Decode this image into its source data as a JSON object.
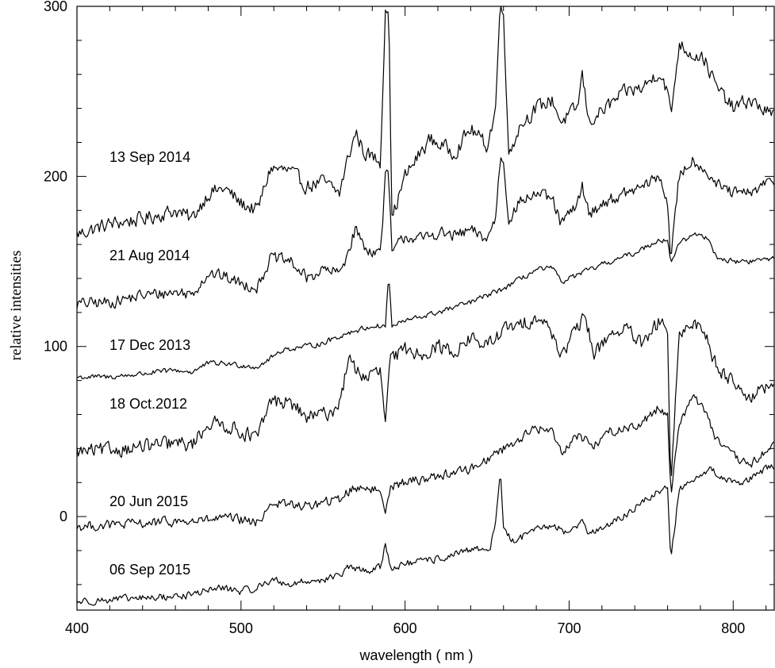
{
  "chart_data": {
    "type": "line",
    "title": "",
    "xlabel": "wavelength ( nm )",
    "ylabel": "relative intensities",
    "xlim": [
      400,
      825
    ],
    "ylim": [
      -55,
      300
    ],
    "xticks": [
      400,
      500,
      600,
      700,
      800
    ],
    "yticks": [
      0,
      100,
      200,
      300
    ],
    "grid": false,
    "line_color": "#000000",
    "series": [
      {
        "name": "13 Sep 2014",
        "points": [
          [
            400,
            166
          ],
          [
            420,
            172
          ],
          [
            440,
            175
          ],
          [
            460,
            180
          ],
          [
            470,
            175
          ],
          [
            480,
            190
          ],
          [
            490,
            193
          ],
          [
            500,
            184
          ],
          [
            510,
            180
          ],
          [
            518,
            205
          ],
          [
            530,
            203
          ],
          [
            540,
            194
          ],
          [
            550,
            197
          ],
          [
            560,
            190
          ],
          [
            565,
            210
          ],
          [
            570,
            226
          ],
          [
            575,
            214
          ],
          [
            585,
            209
          ],
          [
            588,
            300
          ],
          [
            590,
            300
          ],
          [
            592,
            175
          ],
          [
            600,
            200
          ],
          [
            615,
            222
          ],
          [
            630,
            214
          ],
          [
            640,
            228
          ],
          [
            650,
            218
          ],
          [
            655,
            238
          ],
          [
            658,
            300
          ],
          [
            660,
            300
          ],
          [
            663,
            213
          ],
          [
            670,
            230
          ],
          [
            680,
            240
          ],
          [
            690,
            245
          ],
          [
            695,
            232
          ],
          [
            705,
            240
          ],
          [
            708,
            260
          ],
          [
            712,
            232
          ],
          [
            722,
            240
          ],
          [
            735,
            250
          ],
          [
            745,
            252
          ],
          [
            755,
            262
          ],
          [
            760,
            250
          ],
          [
            762,
            235
          ],
          [
            767,
            278
          ],
          [
            775,
            272
          ],
          [
            782,
            270
          ],
          [
            790,
            252
          ],
          [
            800,
            240
          ],
          [
            810,
            245
          ],
          [
            825,
            235
          ]
        ],
        "noise": 6
      },
      {
        "name": "21 Aug 2014",
        "points": [
          [
            400,
            125
          ],
          [
            420,
            126
          ],
          [
            440,
            130
          ],
          [
            460,
            132
          ],
          [
            470,
            131
          ],
          [
            480,
            143
          ],
          [
            490,
            141
          ],
          [
            500,
            137
          ],
          [
            510,
            135
          ],
          [
            518,
            152
          ],
          [
            530,
            150
          ],
          [
            540,
            140
          ],
          [
            550,
            145
          ],
          [
            560,
            143
          ],
          [
            565,
            155
          ],
          [
            570,
            170
          ],
          [
            575,
            158
          ],
          [
            585,
            155
          ],
          [
            588,
            200
          ],
          [
            590,
            200
          ],
          [
            592,
            155
          ],
          [
            600,
            165
          ],
          [
            610,
            163
          ],
          [
            620,
            167
          ],
          [
            630,
            165
          ],
          [
            640,
            168
          ],
          [
            650,
            163
          ],
          [
            655,
            175
          ],
          [
            658,
            210
          ],
          [
            660,
            210
          ],
          [
            663,
            175
          ],
          [
            670,
            185
          ],
          [
            680,
            190
          ],
          [
            690,
            186
          ],
          [
            695,
            172
          ],
          [
            705,
            183
          ],
          [
            708,
            195
          ],
          [
            712,
            178
          ],
          [
            722,
            185
          ],
          [
            735,
            190
          ],
          [
            745,
            194
          ],
          [
            755,
            200
          ],
          [
            760,
            185
          ],
          [
            762,
            150
          ],
          [
            767,
            200
          ],
          [
            775,
            210
          ],
          [
            782,
            205
          ],
          [
            790,
            195
          ],
          [
            800,
            190
          ],
          [
            810,
            190
          ],
          [
            825,
            198
          ]
        ],
        "noise": 5
      },
      {
        "name": "17 Dec 2013",
        "points": [
          [
            400,
            82
          ],
          [
            420,
            82
          ],
          [
            440,
            84
          ],
          [
            460,
            86
          ],
          [
            470,
            85
          ],
          [
            480,
            90
          ],
          [
            490,
            90
          ],
          [
            500,
            89
          ],
          [
            510,
            88
          ],
          [
            518,
            93
          ],
          [
            525,
            98
          ],
          [
            540,
            100
          ],
          [
            550,
            102
          ],
          [
            565,
            108
          ],
          [
            580,
            112
          ],
          [
            588,
            112
          ],
          [
            590,
            143
          ],
          [
            592,
            112
          ],
          [
            600,
            115
          ],
          [
            620,
            120
          ],
          [
            640,
            126
          ],
          [
            660,
            134
          ],
          [
            680,
            145
          ],
          [
            690,
            146
          ],
          [
            695,
            138
          ],
          [
            700,
            140
          ],
          [
            720,
            148
          ],
          [
            740,
            155
          ],
          [
            755,
            163
          ],
          [
            760,
            162
          ],
          [
            762,
            150
          ],
          [
            767,
            160
          ],
          [
            775,
            166
          ],
          [
            785,
            164
          ],
          [
            790,
            152
          ],
          [
            800,
            150
          ],
          [
            810,
            150
          ],
          [
            825,
            152
          ]
        ],
        "noise": 2.2
      },
      {
        "name": "18 Oct.2012",
        "points": [
          [
            400,
            38
          ],
          [
            420,
            39
          ],
          [
            440,
            41
          ],
          [
            460,
            43
          ],
          [
            470,
            42
          ],
          [
            480,
            55
          ],
          [
            490,
            54
          ],
          [
            500,
            50
          ],
          [
            510,
            46
          ],
          [
            518,
            68
          ],
          [
            530,
            67
          ],
          [
            540,
            58
          ],
          [
            550,
            60
          ],
          [
            558,
            63
          ],
          [
            562,
            75
          ],
          [
            565,
            92
          ],
          [
            575,
            82
          ],
          [
            585,
            85
          ],
          [
            588,
            55
          ],
          [
            591,
            92
          ],
          [
            600,
            98
          ],
          [
            610,
            96
          ],
          [
            620,
            100
          ],
          [
            630,
            97
          ],
          [
            640,
            105
          ],
          [
            650,
            100
          ],
          [
            660,
            110
          ],
          [
            670,
            112
          ],
          [
            680,
            118
          ],
          [
            690,
            108
          ],
          [
            695,
            95
          ],
          [
            705,
            110
          ],
          [
            710,
            118
          ],
          [
            715,
            95
          ],
          [
            725,
            108
          ],
          [
            735,
            110
          ],
          [
            745,
            100
          ],
          [
            755,
            115
          ],
          [
            760,
            110
          ],
          [
            762,
            15
          ],
          [
            767,
            105
          ],
          [
            775,
            115
          ],
          [
            782,
            110
          ],
          [
            790,
            88
          ],
          [
            800,
            80
          ],
          [
            810,
            70
          ],
          [
            825,
            78
          ]
        ],
        "noise": 6
      },
      {
        "name": "20 Jun 2015",
        "points": [
          [
            400,
            -6
          ],
          [
            420,
            -5
          ],
          [
            440,
            -4
          ],
          [
            460,
            -3
          ],
          [
            470,
            -3
          ],
          [
            480,
            -2
          ],
          [
            490,
            -1
          ],
          [
            500,
            -2
          ],
          [
            510,
            -4
          ],
          [
            518,
            8
          ],
          [
            530,
            7
          ],
          [
            540,
            6
          ],
          [
            550,
            8
          ],
          [
            560,
            10
          ],
          [
            565,
            15
          ],
          [
            575,
            18
          ],
          [
            585,
            14
          ],
          [
            588,
            5
          ],
          [
            591,
            18
          ],
          [
            600,
            20
          ],
          [
            620,
            24
          ],
          [
            640,
            28
          ],
          [
            660,
            40
          ],
          [
            670,
            46
          ],
          [
            680,
            52
          ],
          [
            690,
            50
          ],
          [
            695,
            38
          ],
          [
            705,
            48
          ],
          [
            715,
            42
          ],
          [
            725,
            50
          ],
          [
            735,
            52
          ],
          [
            745,
            55
          ],
          [
            755,
            65
          ],
          [
            760,
            60
          ],
          [
            762,
            12
          ],
          [
            767,
            55
          ],
          [
            775,
            70
          ],
          [
            782,
            65
          ],
          [
            790,
            45
          ],
          [
            800,
            35
          ],
          [
            810,
            30
          ],
          [
            825,
            42
          ]
        ],
        "noise": 4
      },
      {
        "name": "06 Sep 2015",
        "points": [
          [
            400,
            -50
          ],
          [
            420,
            -49
          ],
          [
            440,
            -48
          ],
          [
            460,
            -47
          ],
          [
            470,
            -46
          ],
          [
            480,
            -43
          ],
          [
            490,
            -42
          ],
          [
            500,
            -44
          ],
          [
            510,
            -42
          ],
          [
            518,
            -37
          ],
          [
            530,
            -40
          ],
          [
            540,
            -38
          ],
          [
            550,
            -37
          ],
          [
            560,
            -35
          ],
          [
            565,
            -30
          ],
          [
            575,
            -32
          ],
          [
            585,
            -30
          ],
          [
            588,
            -16
          ],
          [
            591,
            -30
          ],
          [
            600,
            -28
          ],
          [
            620,
            -25
          ],
          [
            640,
            -20
          ],
          [
            652,
            -18
          ],
          [
            655,
            -5
          ],
          [
            658,
            27
          ],
          [
            660,
            -5
          ],
          [
            665,
            -15
          ],
          [
            680,
            -8
          ],
          [
            690,
            -5
          ],
          [
            700,
            -10
          ],
          [
            705,
            -5
          ],
          [
            708,
            0
          ],
          [
            712,
            -10
          ],
          [
            725,
            -5
          ],
          [
            740,
            5
          ],
          [
            755,
            15
          ],
          [
            760,
            18
          ],
          [
            762,
            -25
          ],
          [
            767,
            15
          ],
          [
            775,
            22
          ],
          [
            785,
            28
          ],
          [
            795,
            22
          ],
          [
            805,
            20
          ],
          [
            815,
            25
          ],
          [
            825,
            30
          ]
        ],
        "noise": 3
      }
    ]
  }
}
